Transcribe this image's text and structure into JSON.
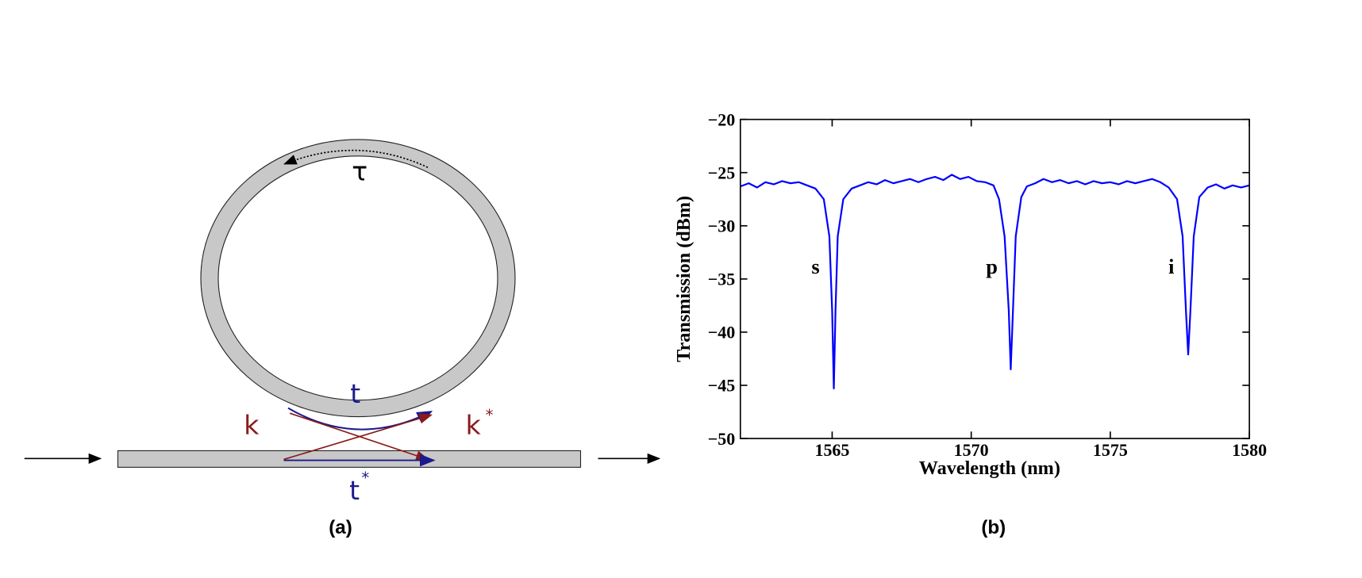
{
  "diagram": {
    "labels": {
      "tau": "τ",
      "t": "t",
      "k": "k",
      "k_conj": {
        "base": "k",
        "sup": "*"
      },
      "t_conj": {
        "base": "t",
        "sup": "*"
      }
    },
    "panel_label": "(a)"
  },
  "chart_data": {
    "type": "line",
    "panel_label": "(b)",
    "x_label": "Wavelength (nm)",
    "y_label": "Transmission (dBm)",
    "xlim": [
      1561.7,
      1580
    ],
    "ylim": [
      -50,
      -20
    ],
    "xticks": [
      1565,
      1570,
      1575,
      1580
    ],
    "yticks": [
      {
        "value": -20,
        "label": "−20"
      },
      {
        "value": -25,
        "label": "−25"
      },
      {
        "value": -30,
        "label": "−30"
      },
      {
        "value": -35,
        "label": "−35"
      },
      {
        "value": -40,
        "label": "−40"
      },
      {
        "value": -45,
        "label": "−45"
      },
      {
        "value": -50,
        "label": "−50"
      }
    ],
    "annotations": [
      "s",
      "p",
      "i"
    ],
    "x": [
      1561.7,
      1562.0,
      1562.3,
      1562.6,
      1562.9,
      1563.2,
      1563.5,
      1563.8,
      1564.1,
      1564.4,
      1564.7,
      1564.9,
      1565.0,
      1565.06,
      1565.12,
      1565.2,
      1565.4,
      1565.7,
      1566.0,
      1566.3,
      1566.6,
      1566.9,
      1567.2,
      1567.5,
      1567.8,
      1568.1,
      1568.4,
      1568.7,
      1569.0,
      1569.3,
      1569.6,
      1569.9,
      1570.2,
      1570.5,
      1570.8,
      1571.0,
      1571.2,
      1571.35,
      1571.42,
      1571.5,
      1571.6,
      1571.8,
      1572.0,
      1572.3,
      1572.6,
      1572.9,
      1573.2,
      1573.5,
      1573.8,
      1574.1,
      1574.4,
      1574.7,
      1575.0,
      1575.3,
      1575.6,
      1575.9,
      1576.2,
      1576.5,
      1576.8,
      1577.1,
      1577.4,
      1577.6,
      1577.72,
      1577.8,
      1577.88,
      1578.0,
      1578.2,
      1578.5,
      1578.8,
      1579.1,
      1579.4,
      1579.7,
      1580.0
    ],
    "series": [
      {
        "color": "#0000ff",
        "values": [
          -26.3,
          -26.0,
          -26.4,
          -25.9,
          -26.1,
          -25.8,
          -26.0,
          -25.9,
          -26.2,
          -26.5,
          -27.5,
          -31,
          -38,
          -45.3,
          -38,
          -31,
          -27.5,
          -26.5,
          -26.2,
          -25.9,
          -26.1,
          -25.7,
          -26.0,
          -25.8,
          -25.6,
          -25.9,
          -25.6,
          -25.4,
          -25.7,
          -25.2,
          -25.6,
          -25.4,
          -25.8,
          -25.9,
          -26.2,
          -27.5,
          -31,
          -38,
          -43.5,
          -38,
          -31,
          -27.3,
          -26.3,
          -26.0,
          -25.6,
          -25.9,
          -25.7,
          -26.0,
          -25.8,
          -26.1,
          -25.8,
          -26.0,
          -25.9,
          -26.1,
          -25.8,
          -26.0,
          -25.8,
          -25.6,
          -25.9,
          -26.4,
          -27.5,
          -31,
          -38,
          -42.1,
          -38,
          -31,
          -27.3,
          -26.4,
          -26.1,
          -26.5,
          -26.2,
          -26.4,
          -26.2
        ]
      }
    ]
  }
}
